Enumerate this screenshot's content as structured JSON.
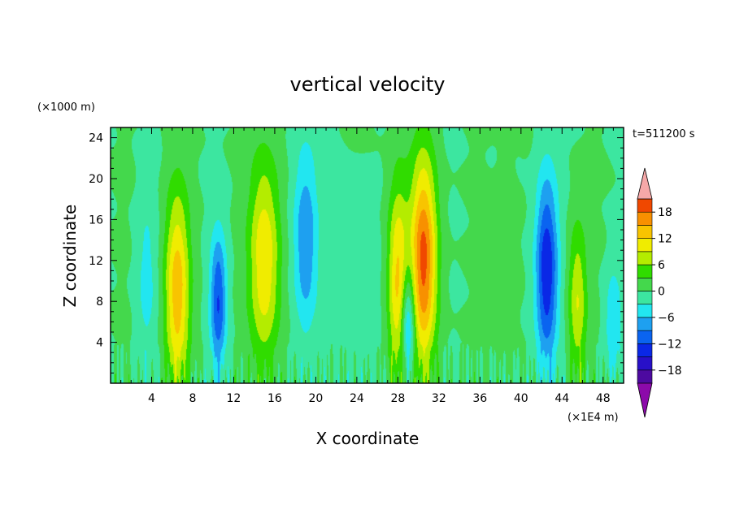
{
  "chart_data": {
    "type": "heatmap",
    "title": "vertical velocity",
    "xlabel": "X coordinate",
    "ylabel": "Z coordinate",
    "x_unit_label": "(×1E4 m)",
    "y_unit_label": "(×1000 m)",
    "time_label": "t=511200 s",
    "xlim": [
      0,
      50
    ],
    "ylim": [
      0,
      25
    ],
    "xticks": [
      4,
      8,
      12,
      16,
      20,
      24,
      28,
      32,
      36,
      40,
      44,
      48
    ],
    "xtick_labels": [
      "4",
      "8",
      "12",
      "16",
      "20",
      "24",
      "28",
      "32",
      "36",
      "40",
      "44",
      "48"
    ],
    "yticks": [
      4,
      8,
      12,
      16,
      20,
      24
    ],
    "ytick_labels": [
      "4",
      "8",
      "12",
      "16",
      "20",
      "24"
    ],
    "colorbar": {
      "levels": [
        -21,
        -18,
        -15,
        -12,
        -9,
        -6,
        -3,
        0,
        3,
        6,
        9,
        12,
        15,
        18,
        21
      ],
      "tick_values": [
        -18,
        -12,
        -6,
        0,
        6,
        12,
        18
      ],
      "tick_labels": [
        "−18",
        "−12",
        "−6",
        "0",
        "6",
        "12",
        "18"
      ],
      "colors": [
        "#4d0aa0",
        "#2810c8",
        "#0a28e6",
        "#0a64f0",
        "#1ea0f0",
        "#22e6f0",
        "#3ce6a0",
        "#44d84c",
        "#30dc00",
        "#b4ec00",
        "#f0ec00",
        "#f8c400",
        "#f89000",
        "#f04800",
        "#dc1414"
      ],
      "under_color": "#8c0aaa",
      "over_color": "#f5a8a8"
    },
    "features": [
      {
        "x": 6.5,
        "zc": 9,
        "amp": 14,
        "top": 23,
        "w": 1.2
      },
      {
        "x": 10.5,
        "zc": 8,
        "amp": -12,
        "top": 16,
        "w": 0.8
      },
      {
        "x": 15.0,
        "zc": 12,
        "amp": 12,
        "top": 24,
        "w": 1.5
      },
      {
        "x": 19.0,
        "zc": 14,
        "amp": -9,
        "top": 22,
        "w": 1.2
      },
      {
        "x": 28.0,
        "zc": 10,
        "amp": 13,
        "top": 23,
        "w": 1.0
      },
      {
        "x": 29.0,
        "zc": 6,
        "amp": -12,
        "top": 12,
        "w": 0.7
      },
      {
        "x": 30.5,
        "zc": 12,
        "amp": 19,
        "top": 24,
        "w": 1.3
      },
      {
        "x": 42.5,
        "zc": 11,
        "amp": -15,
        "top": 22,
        "w": 1.1
      },
      {
        "x": 45.5,
        "zc": 8,
        "amp": 9,
        "top": 18,
        "w": 0.9
      },
      {
        "x": 3.5,
        "zc": 10,
        "amp": -4,
        "top": 20,
        "w": 1.0
      },
      {
        "x": 24.5,
        "zc": 10,
        "amp": -3,
        "top": 20,
        "w": 1.5
      },
      {
        "x": 38.5,
        "zc": 12,
        "amp": 3,
        "top": 20,
        "w": 1.0
      },
      {
        "x": 49.0,
        "zc": 6,
        "amp": -6,
        "top": 12,
        "w": 0.8
      }
    ]
  }
}
